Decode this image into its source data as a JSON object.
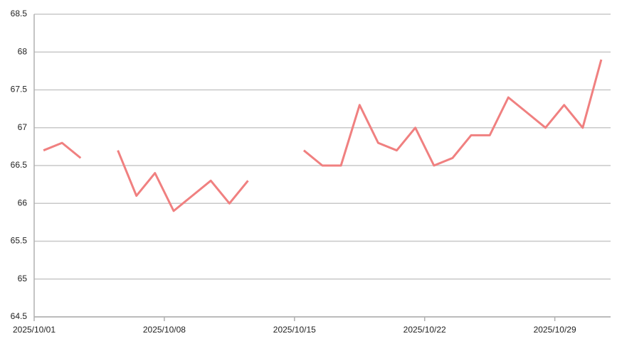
{
  "chart_data": {
    "type": "line",
    "categories": [
      "2025/10/01",
      null,
      null,
      null,
      null,
      null,
      null,
      "2025/10/08",
      null,
      null,
      null,
      null,
      null,
      null,
      "2025/10/15",
      null,
      null,
      null,
      null,
      null,
      null,
      "2025/10/22",
      null,
      null,
      null,
      null,
      null,
      null,
      "2025/10/29",
      null,
      null
    ],
    "series": [
      {
        "color": "#f08080",
        "values": [
          66.7,
          66.8,
          66.6,
          null,
          66.7,
          66.1,
          66.4,
          65.9,
          66.1,
          66.3,
          66.0,
          66.3,
          null,
          null,
          66.7,
          66.5,
          66.5,
          67.3,
          66.8,
          66.7,
          67.0,
          66.5,
          66.6,
          66.9,
          66.9,
          67.4,
          67.2,
          67.0,
          67.3,
          67.0,
          67.9
        ]
      }
    ],
    "ylim": [
      64.5,
      68.5
    ],
    "yticks": [
      64.5,
      65,
      65.5,
      66,
      66.5,
      67,
      67.5,
      68,
      68.5
    ],
    "grid": true
  }
}
